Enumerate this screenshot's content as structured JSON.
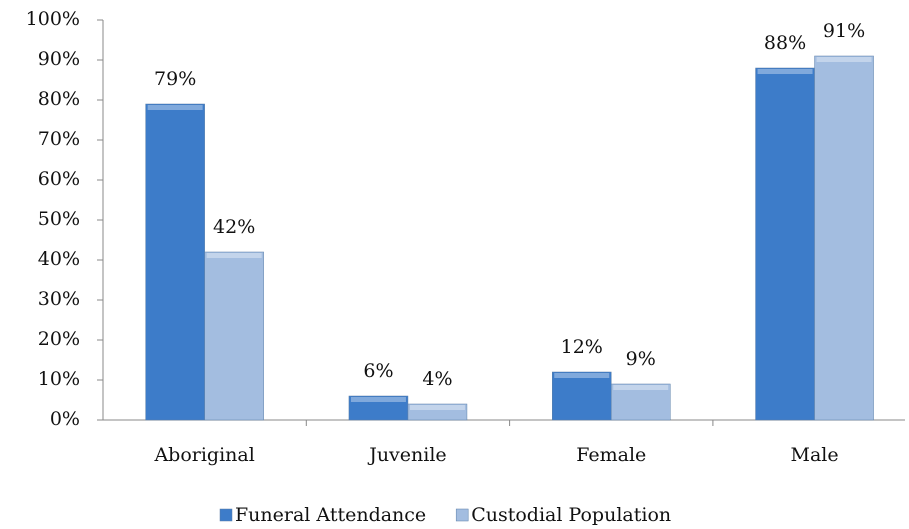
{
  "chart_data": {
    "type": "bar",
    "categories": [
      "Aboriginal",
      "Juvenile",
      "Female",
      "Male"
    ],
    "series": [
      {
        "name": "Funeral Attendance",
        "color": "#3d7cc9",
        "values": [
          79,
          6,
          12,
          88
        ],
        "value_labels": [
          "79%",
          "6%",
          "12%",
          "88%"
        ]
      },
      {
        "name": "Custodial Population",
        "color": "#a3bde0",
        "values": [
          42,
          4,
          9,
          91
        ],
        "value_labels": [
          "42%",
          "4%",
          "9%",
          "91%"
        ]
      }
    ],
    "ylim": [
      0,
      100
    ],
    "yticks": [
      {
        "value": 0,
        "label": "0%"
      },
      {
        "value": 10,
        "label": "10%"
      },
      {
        "value": 20,
        "label": "20%"
      },
      {
        "value": 30,
        "label": "30%"
      },
      {
        "value": 40,
        "label": "40%"
      },
      {
        "value": 50,
        "label": "50%"
      },
      {
        "value": 60,
        "label": "60%"
      },
      {
        "value": 70,
        "label": "70%"
      },
      {
        "value": 80,
        "label": "80%"
      },
      {
        "value": 90,
        "label": "90%"
      },
      {
        "value": 100,
        "label": "100%"
      }
    ],
    "legend": "bottom"
  }
}
